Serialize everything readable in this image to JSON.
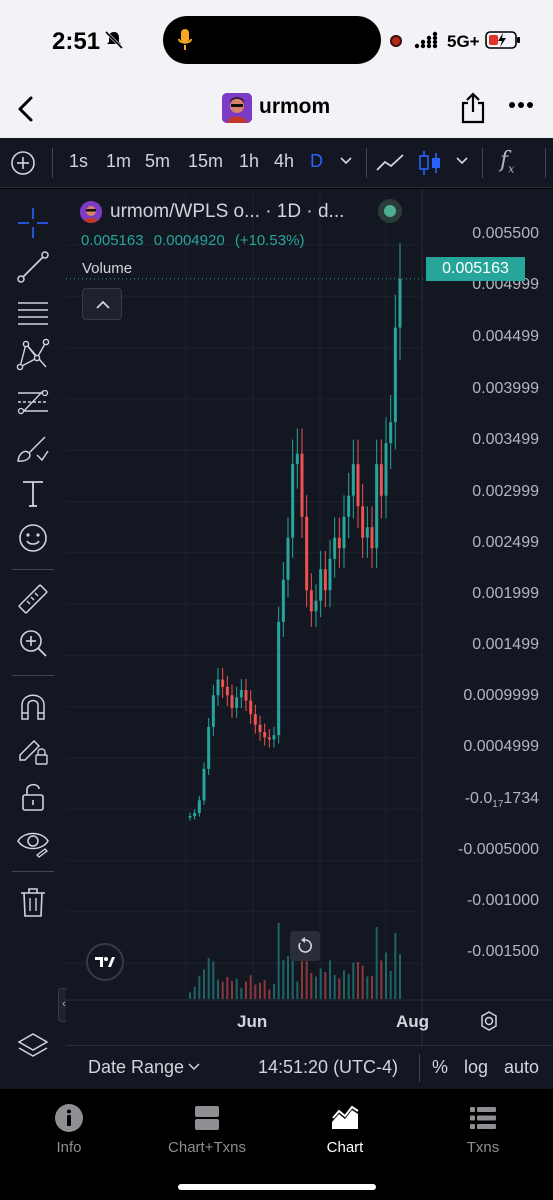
{
  "status_bar": {
    "time": "2:51",
    "network": "5G+",
    "icons": [
      "silent-bell-icon",
      "microphone-icon",
      "recording-dot-icon",
      "signal-icon",
      "battery-charging-icon"
    ]
  },
  "header": {
    "title": "urmom",
    "icons": [
      "back-chevron-icon",
      "token-avatar",
      "share-icon",
      "more-icon"
    ]
  },
  "toolbar": {
    "timeframes": [
      "1s",
      "1m",
      "5m",
      "15m",
      "1h",
      "4h",
      "D"
    ],
    "active_timeframe": "D",
    "icons": [
      "add-icon",
      "chevron-down-icon",
      "line-chart-icon",
      "candles-icon",
      "chevron-down-icon",
      "indicators-fx-icon"
    ],
    "fx": "f",
    "fx_sub": "x"
  },
  "left_tools": [
    "crosshair-icon",
    "trend-line-icon",
    "horizontal-lines-icon",
    "pattern-icon",
    "fib-icon",
    "brush-icon",
    "text-icon",
    "emoji-icon",
    "ruler-icon",
    "zoom-in-icon",
    "magnet-icon",
    "lock-drawing-icon",
    "unlock-icon",
    "eye-icon",
    "trash-icon"
  ],
  "legend": {
    "symbol": "urmom/WPLS o... · 1D · d...",
    "last": "0.005163",
    "change": "0.0004920",
    "change_pct": "(+10.53%)",
    "volume_label": "Volume"
  },
  "price_axis": {
    "labels": [
      "0.005500",
      "0.004999",
      "0.004499",
      "0.003999",
      "0.003499",
      "0.002999",
      "0.002499",
      "0.001999",
      "0.001499",
      "0.0009999",
      "0.0004999",
      "-0.0",
      "-0.0005000",
      "-0.001000",
      "-0.001500"
    ],
    "subscript_label": {
      "prefix": "-0.0",
      "sub": "17",
      "suffix": "1734"
    },
    "last_price": "0.005163"
  },
  "time_axis": {
    "labels": [
      "Jun",
      "Aug"
    ]
  },
  "chart_bottom": {
    "date_range": "Date Range",
    "clock": "14:51:20 (UTC-4)",
    "percent": "%",
    "log": "log",
    "auto": "auto"
  },
  "tabbar": {
    "tabs": [
      {
        "label": "Info",
        "icon": "info-icon"
      },
      {
        "label": "Chart+Txns",
        "icon": "chart-txns-icon"
      },
      {
        "label": "Chart",
        "icon": "chart-icon",
        "active": true
      },
      {
        "label": "Txns",
        "icon": "list-icon"
      }
    ]
  },
  "colors": {
    "up": "#26a69a",
    "down": "#ef5350",
    "background": "#131722",
    "accent": "#2962ff"
  },
  "chart_data": {
    "type": "candlestick",
    "symbol": "urmom/WPLS",
    "interval": "1D",
    "y_axis_range": [
      -0.0017,
      0.0056
    ],
    "x_axis_labels": [
      "Jun",
      "Aug"
    ],
    "close_series": [
      5e-05,
      8e-05,
      0.0002,
      0.0005,
      0.0009,
      0.0012,
      0.00135,
      0.00128,
      0.0012,
      0.00108,
      0.00118,
      0.00125,
      0.00115,
      0.00102,
      0.00092,
      0.00085,
      0.0008,
      0.00078,
      0.00082,
      0.0019,
      0.0023,
      0.0027,
      0.0034,
      0.0035,
      0.0029,
      0.0022,
      0.002,
      0.0021,
      0.0024,
      0.0022,
      0.0025,
      0.0027,
      0.0026,
      0.0029,
      0.0031,
      0.0034,
      0.003,
      0.0027,
      0.0028,
      0.0026,
      0.0034,
      0.0031,
      0.0036,
      0.0038,
      0.0047,
      0.005163
    ],
    "last": 0.005163,
    "change": 0.000492,
    "change_pct": 10.53
  }
}
